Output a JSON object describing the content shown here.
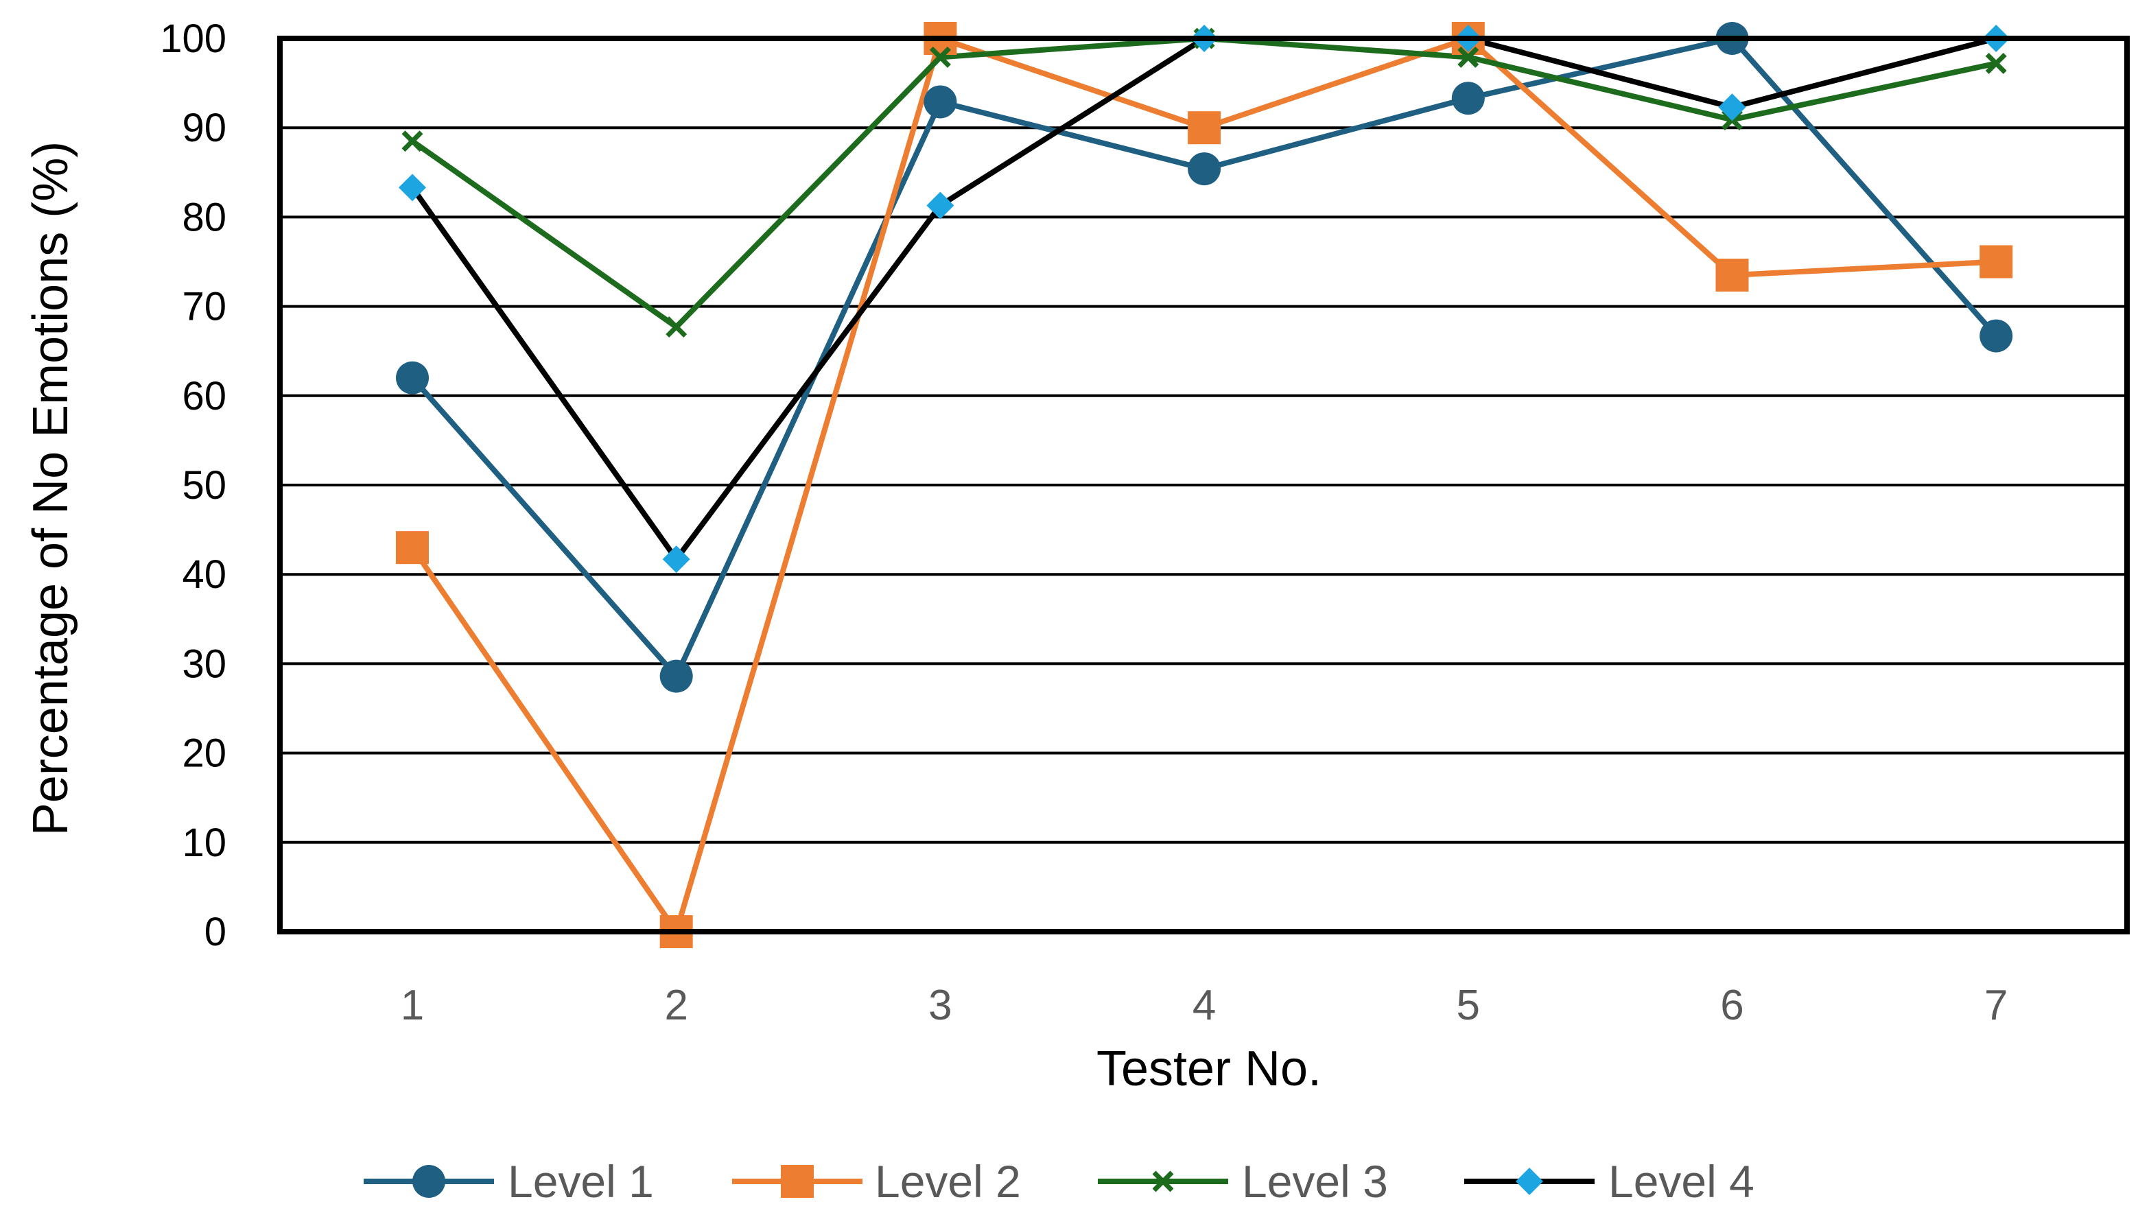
{
  "chart_data": {
    "type": "line",
    "title": "",
    "xlabel": "Tester No.",
    "ylabel": "Percentage of No Emotions (%)",
    "categories": [
      "1",
      "2",
      "3",
      "4",
      "5",
      "6",
      "7"
    ],
    "ylim": [
      0,
      100
    ],
    "yticks": [
      "0",
      "10",
      "20",
      "30",
      "40",
      "50",
      "60",
      "70",
      "80",
      "90",
      "100"
    ],
    "grid": true,
    "legend_position": "bottom",
    "series": [
      {
        "name": "Level 1",
        "color": "#1f5f82",
        "marker": "circle",
        "values": [
          62,
          28.6,
          92.9,
          85.4,
          93.3,
          100,
          66.7
        ]
      },
      {
        "name": "Level 2",
        "color": "#ed7d31",
        "marker": "square",
        "values": [
          43,
          0,
          100,
          90,
          100,
          73.5,
          75
        ]
      },
      {
        "name": "Level 3",
        "color": "#1d6b1d",
        "marker": "x",
        "values": [
          88.5,
          67.7,
          97.9,
          100,
          97.9,
          90.9,
          97.2
        ]
      },
      {
        "name": "Level 4",
        "color": "#000000",
        "marker": "diamond",
        "marker_color": "#1ca5e0",
        "values": [
          83.3,
          41.7,
          81.3,
          100,
          100,
          92.3,
          100
        ]
      }
    ]
  }
}
